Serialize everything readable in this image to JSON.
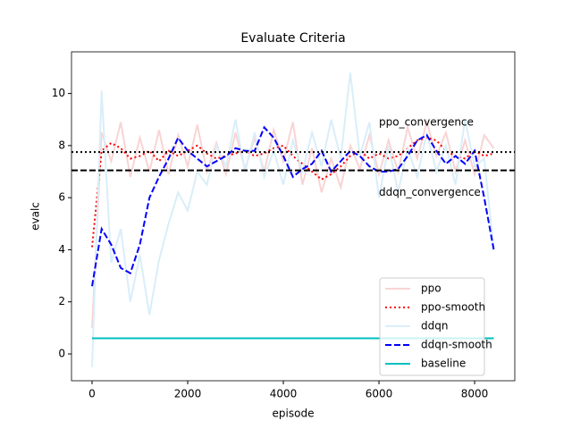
{
  "chart_data": {
    "type": "line",
    "title": "Evaluate Criteria",
    "x_label": "episode",
    "y_label": "evalc",
    "x": [
      0,
      200,
      400,
      600,
      800,
      1000,
      1200,
      1400,
      1600,
      1800,
      2000,
      2200,
      2400,
      2600,
      2800,
      3000,
      3200,
      3400,
      3600,
      3800,
      4000,
      4200,
      4400,
      4600,
      4800,
      5000,
      5200,
      5400,
      5600,
      5800,
      6000,
      6200,
      6400,
      6600,
      6800,
      7000,
      7200,
      7400,
      7600,
      7800,
      8000,
      8200,
      8400
    ],
    "series": [
      {
        "name": "ppo",
        "color": "#f9d4d4",
        "linestyle": "solid",
        "width": 2,
        "values": [
          1.0,
          8.5,
          7.4,
          8.9,
          6.8,
          8.3,
          7.0,
          8.6,
          6.9,
          8.4,
          7.2,
          8.8,
          7.0,
          8.1,
          6.9,
          8.5,
          7.1,
          8.3,
          7.0,
          8.6,
          7.4,
          8.9,
          6.5,
          7.9,
          6.2,
          7.5,
          6.4,
          8.0,
          7.1,
          8.4,
          6.9,
          8.2,
          7.0,
          8.7,
          7.5,
          8.9,
          7.6,
          8.5,
          7.0,
          8.2,
          6.9,
          8.4,
          7.9
        ]
      },
      {
        "name": "ppo-smooth",
        "color": "#ff0000",
        "linestyle": "dotted",
        "width": 2,
        "values": [
          4.1,
          7.8,
          8.1,
          7.9,
          7.5,
          7.6,
          7.8,
          7.4,
          7.8,
          7.6,
          7.8,
          8.0,
          7.7,
          7.5,
          7.6,
          7.7,
          7.8,
          7.6,
          7.7,
          7.9,
          8.0,
          7.6,
          7.3,
          7.0,
          6.7,
          6.9,
          7.2,
          7.6,
          7.8,
          7.5,
          7.7,
          7.5,
          7.6,
          7.9,
          8.2,
          8.3,
          8.2,
          7.8,
          7.6,
          7.5,
          7.8,
          7.6,
          7.7
        ]
      },
      {
        "name": "ddqn",
        "color": "#d9eef9",
        "linestyle": "solid",
        "width": 2,
        "values": [
          -0.5,
          10.1,
          3.5,
          4.8,
          2.0,
          3.8,
          1.5,
          3.6,
          5.0,
          6.2,
          5.5,
          7.0,
          6.5,
          8.0,
          7.2,
          9.0,
          7.0,
          8.5,
          6.8,
          7.8,
          6.5,
          8.2,
          7.0,
          8.5,
          7.2,
          9.0,
          7.5,
          10.8,
          7.6,
          8.9,
          6.0,
          8.0,
          6.2,
          7.9,
          6.8,
          8.5,
          7.0,
          8.0,
          6.5,
          9.0,
          7.2,
          7.5,
          4.0
        ]
      },
      {
        "name": "ddqn-smooth",
        "color": "#0000ff",
        "linestyle": "dashed",
        "width": 2,
        "values": [
          2.6,
          4.8,
          4.2,
          3.3,
          3.1,
          4.2,
          6.0,
          6.8,
          7.5,
          8.3,
          7.8,
          7.5,
          7.2,
          7.4,
          7.6,
          7.9,
          7.8,
          7.8,
          8.7,
          8.3,
          7.6,
          6.8,
          7.1,
          7.3,
          7.8,
          7.0,
          7.4,
          7.8,
          7.6,
          7.2,
          7.0,
          7.0,
          7.1,
          7.6,
          8.2,
          8.4,
          7.8,
          7.3,
          7.6,
          7.3,
          7.8,
          6.0,
          4.0
        ]
      },
      {
        "name": "baseline",
        "color": "#00bfbf",
        "linestyle": "solid",
        "width": 2,
        "values": [
          0.6,
          0.6,
          0.6,
          0.6,
          0.6,
          0.6,
          0.6,
          0.6,
          0.6,
          0.6,
          0.6,
          0.6,
          0.6,
          0.6,
          0.6,
          0.6,
          0.6,
          0.6,
          0.6,
          0.6,
          0.6,
          0.6,
          0.6,
          0.6,
          0.6,
          0.6,
          0.6,
          0.6,
          0.6,
          0.6,
          0.6,
          0.6,
          0.6,
          0.6,
          0.6,
          0.6,
          0.6,
          0.6,
          0.6,
          0.6,
          0.6,
          0.6,
          0.6
        ]
      }
    ],
    "reference_lines": [
      {
        "label": "ppo_convergence",
        "y": 7.75,
        "linestyle": "dotted",
        "color": "#000000",
        "label_side": "above"
      },
      {
        "label": "ddqn_convergence",
        "y": 7.05,
        "linestyle": "dashed",
        "color": "#000000",
        "label_side": "below"
      }
    ],
    "xlim": [
      -430,
      8840
    ],
    "ylim": [
      -1.03,
      11.6
    ],
    "xticks": [
      0,
      2000,
      4000,
      6000,
      8000
    ],
    "yticks": [
      0,
      2,
      4,
      6,
      8,
      10
    ],
    "legend": "lower right"
  }
}
